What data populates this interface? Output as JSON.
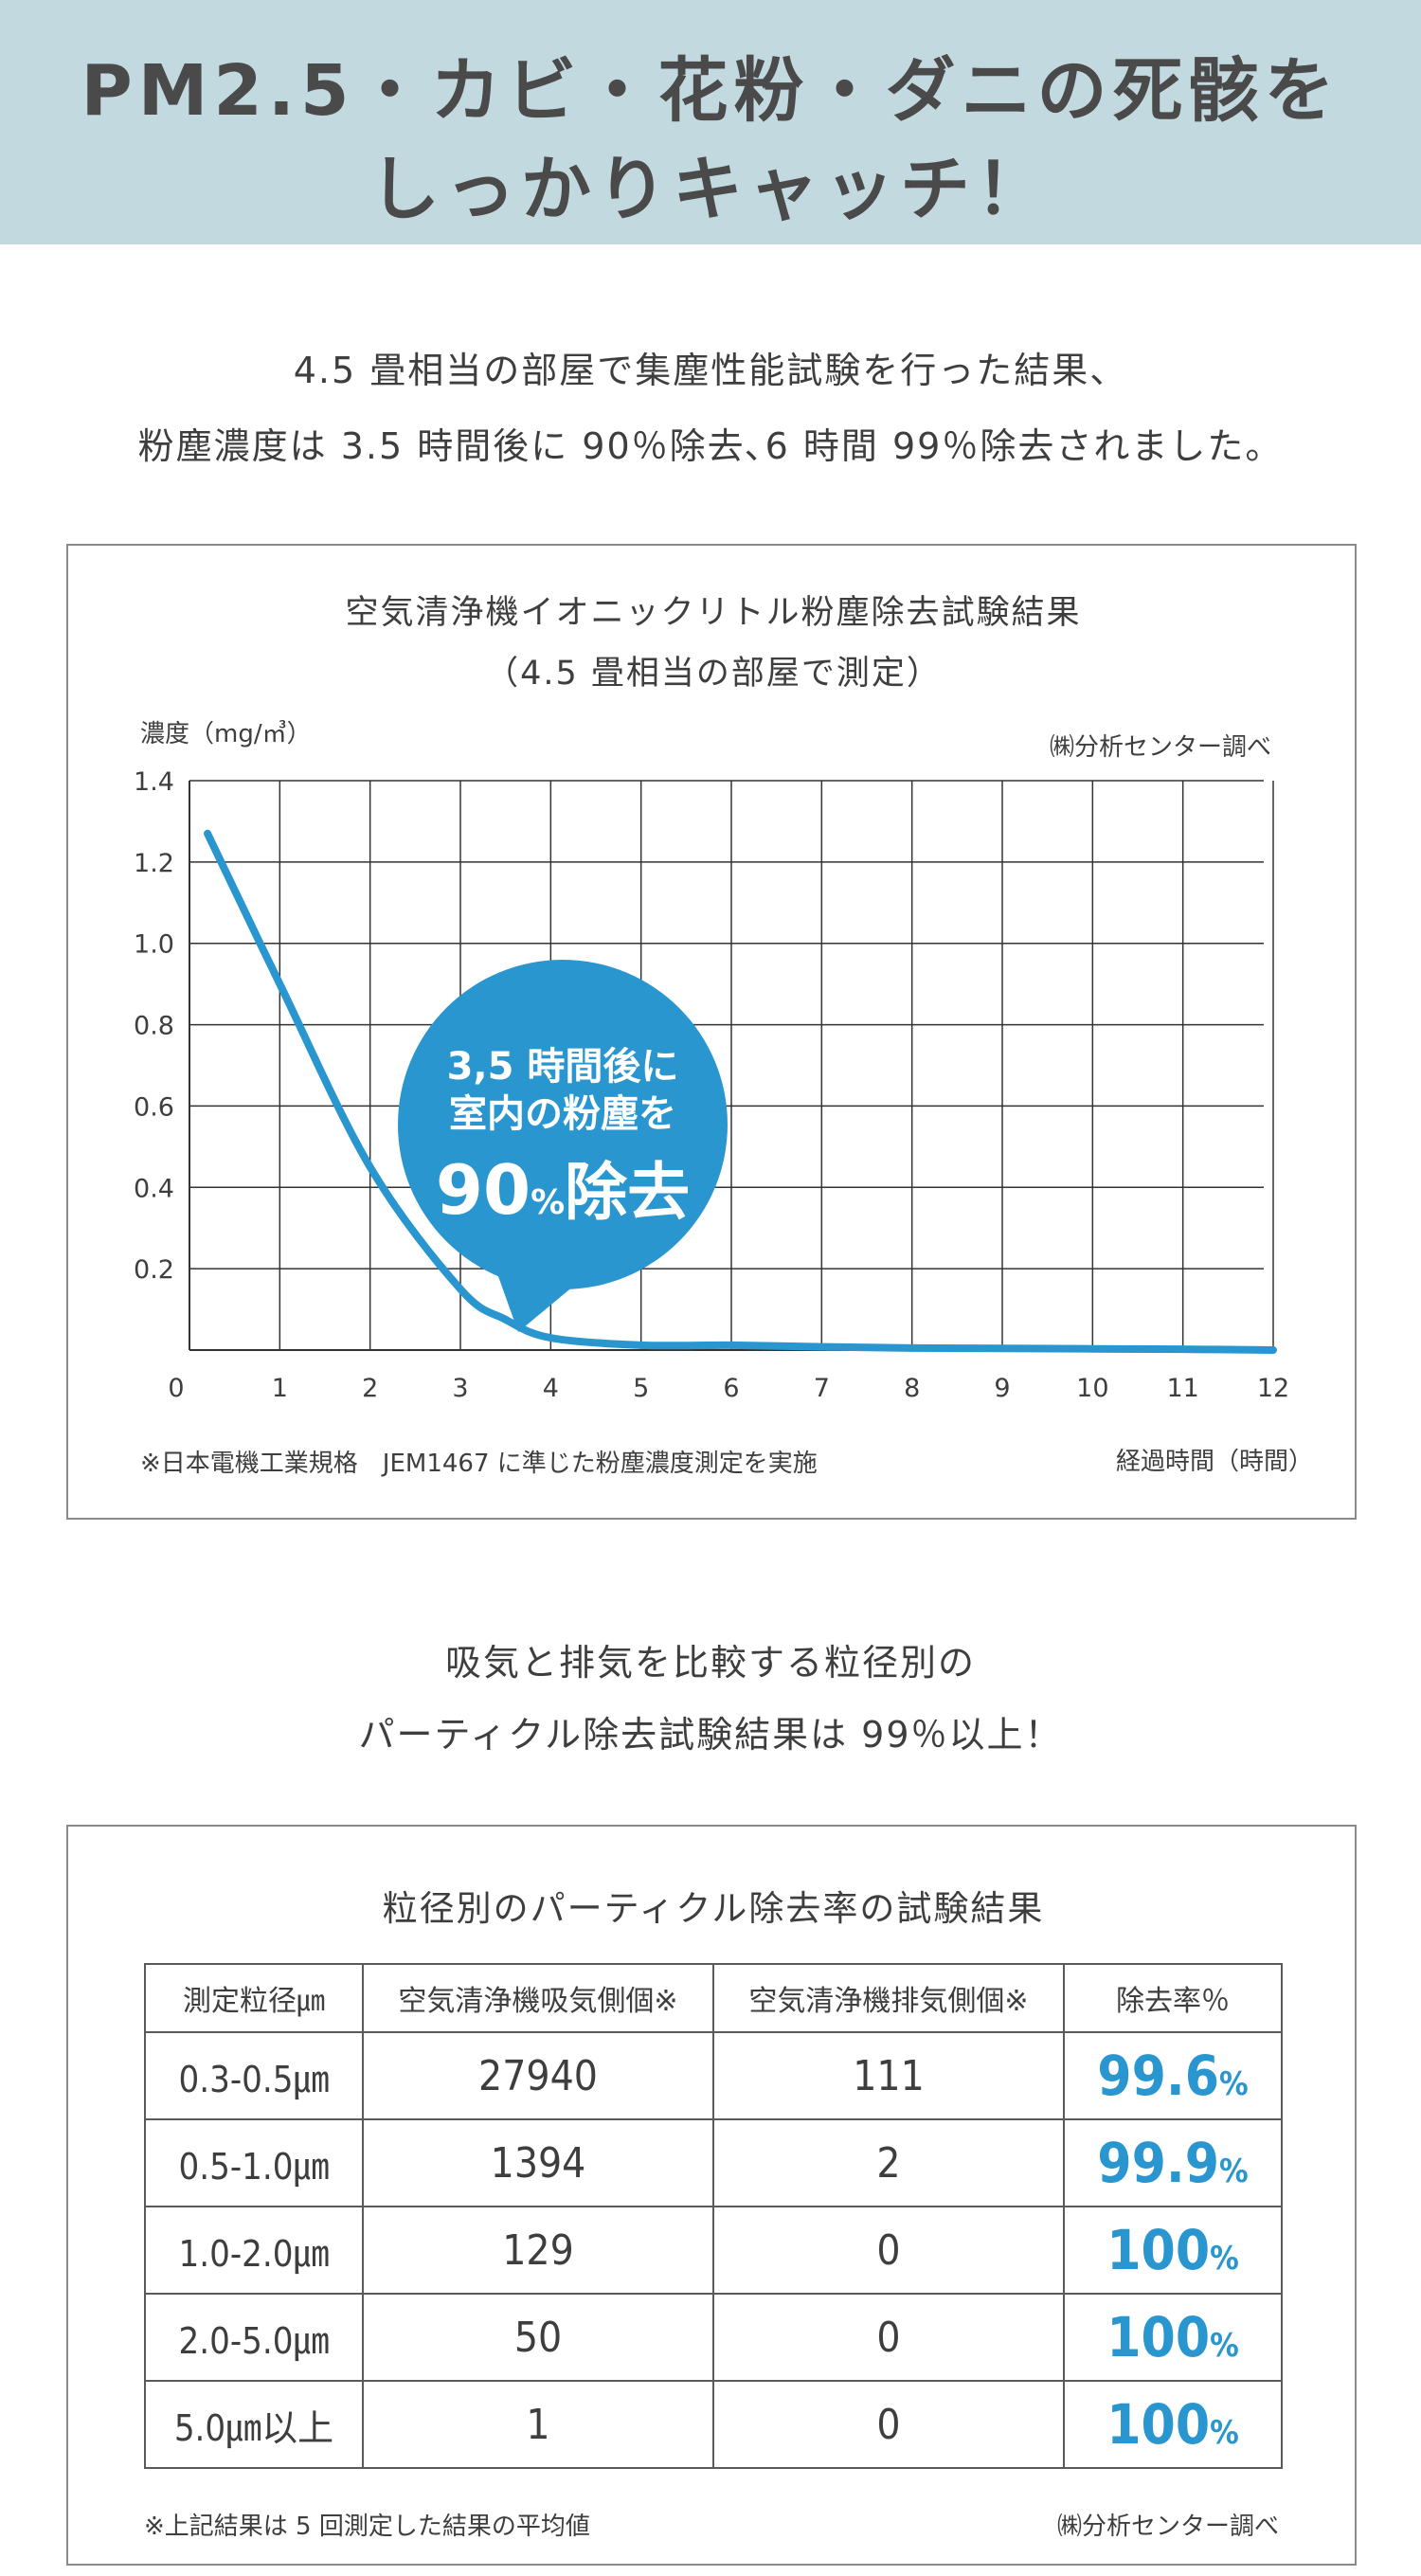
{
  "banner": {
    "line1": "PM2.5・カビ・花粉・ダニの死骸を",
    "line2": "しっかりキャッチ！",
    "bg_color": "#c3d9e0"
  },
  "intro1": {
    "line1": "4.5 畳相当の部屋で集塵性能試験を行った結果、",
    "line2": "粉塵濃度は 3.5 時間後に 90％除去､6 時間 99％除去されました。"
  },
  "chart": {
    "title_line1": "空気清浄機イオニックリトル粉塵除去試験結果",
    "title_line2": "（4.5 畳相当の部屋で測定）",
    "source": "㈱分析センター調べ",
    "footnote": "※日本電機工業規格　JEM1467 に準じた粉塵濃度測定を実施",
    "bubble_line1": "3,5 時間後に",
    "bubble_line2": "室内の粉塵を",
    "bubble_big": "90",
    "bubble_pct": "%",
    "bubble_tail": "除去",
    "accent_color": "#2a96cf",
    "grid_color": "#333333"
  },
  "chart_data": {
    "type": "line",
    "title": "空気清浄機イオニックリトル粉塵除去試験結果",
    "xlabel": "経過時間（時間）",
    "ylabel": "濃度（mg/㎥）",
    "xlim": [
      0,
      12
    ],
    "ylim": [
      0,
      1.4
    ],
    "xticks": [
      "0",
      "1",
      "2",
      "3",
      "4",
      "5",
      "6",
      "7",
      "8",
      "9",
      "10",
      "11",
      "12"
    ],
    "yticks": [
      "0.2",
      "0.4",
      "0.6",
      "0.8",
      "1.0",
      "1.2",
      "1.4"
    ],
    "grid": true,
    "series": [
      {
        "x": [
          0.2,
          1,
          2,
          3,
          3.5,
          4,
          5,
          6,
          7,
          8,
          9,
          10,
          11,
          12
        ],
        "y": [
          1.27,
          0.9,
          0.45,
          0.15,
          0.075,
          0.03,
          0.012,
          0.012,
          0.008,
          0.005,
          0.004,
          0.003,
          0.002,
          0.0
        ],
        "color": "#2a96cf"
      }
    ]
  },
  "intro2": {
    "line1": "吸気と排気を比較する粒径別の",
    "line2": "パーティクル除去試験結果は 99％以上！"
  },
  "table": {
    "title": "粒径別のパーティクル除去率の試験結果",
    "headers": [
      "測定粒径㎛",
      "空気清浄機吸気側個※",
      "空気清浄機排気側個※",
      "除去率％"
    ],
    "rows": [
      {
        "size": "0.3-0.5㎛",
        "intake": "27940",
        "exhaust": "111",
        "rate": "99.6",
        "pct": "%"
      },
      {
        "size": "0.5-1.0㎛",
        "intake": "1394",
        "exhaust": "2",
        "rate": "99.9",
        "pct": "%"
      },
      {
        "size": "1.0-2.0㎛",
        "intake": "129",
        "exhaust": "0",
        "rate": "100",
        "pct": "%"
      },
      {
        "size": "2.0-5.0㎛",
        "intake": "50",
        "exhaust": "0",
        "rate": "100",
        "pct": "%"
      },
      {
        "size": "5.0㎛以上",
        "intake": "1",
        "exhaust": "0",
        "rate": "100",
        "pct": "%"
      }
    ],
    "footnote": "※上記結果は 5 回測定した結果の平均値",
    "source": "㈱分析センター調べ"
  }
}
